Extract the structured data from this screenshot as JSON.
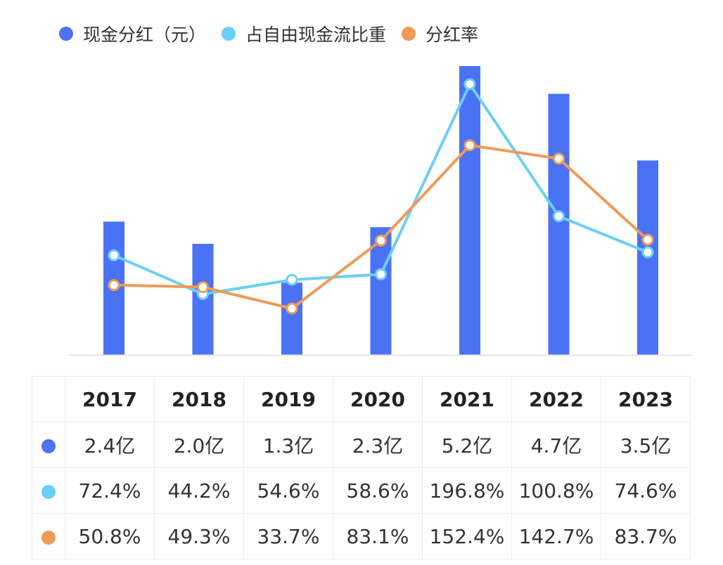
{
  "colors": {
    "bar": "#4a72f5",
    "line_fcf": "#6ccff6",
    "line_payout": "#f09a57",
    "grid": "#ececec"
  },
  "chart_data": {
    "type": "bar+line",
    "categories": [
      "2017",
      "2018",
      "2019",
      "2020",
      "2021",
      "2022",
      "2023"
    ],
    "series": [
      {
        "name": "现金分红（元）",
        "type": "bar",
        "unit": "亿",
        "values": [
          2.4,
          2.0,
          1.3,
          2.3,
          5.2,
          4.7,
          3.5
        ],
        "ylim": [
          0,
          5.2
        ]
      },
      {
        "name": "占自由现金流比重",
        "type": "line",
        "unit": "%",
        "values": [
          72.4,
          44.2,
          54.6,
          58.6,
          196.8,
          100.8,
          74.6
        ],
        "ylim": [
          0,
          210
        ]
      },
      {
        "name": "分红率",
        "type": "line",
        "unit": "%",
        "values": [
          50.8,
          49.3,
          33.7,
          83.1,
          152.4,
          142.7,
          83.7
        ],
        "ylim": [
          0,
          210
        ]
      }
    ],
    "legend_position": "top-left",
    "grid": false
  },
  "legend": [
    "现金分红（元）",
    "占自由现金流比重",
    "分红率"
  ],
  "table": {
    "header": [
      "2017",
      "2018",
      "2019",
      "2020",
      "2021",
      "2022",
      "2023"
    ],
    "rows": [
      [
        "2.4亿",
        "2.0亿",
        "1.3亿",
        "2.3亿",
        "5.2亿",
        "4.7亿",
        "3.5亿"
      ],
      [
        "72.4%",
        "44.2%",
        "54.6%",
        "58.6%",
        "196.8%",
        "100.8%",
        "74.6%"
      ],
      [
        "50.8%",
        "49.3%",
        "33.7%",
        "83.1%",
        "152.4%",
        "142.7%",
        "83.7%"
      ]
    ]
  }
}
